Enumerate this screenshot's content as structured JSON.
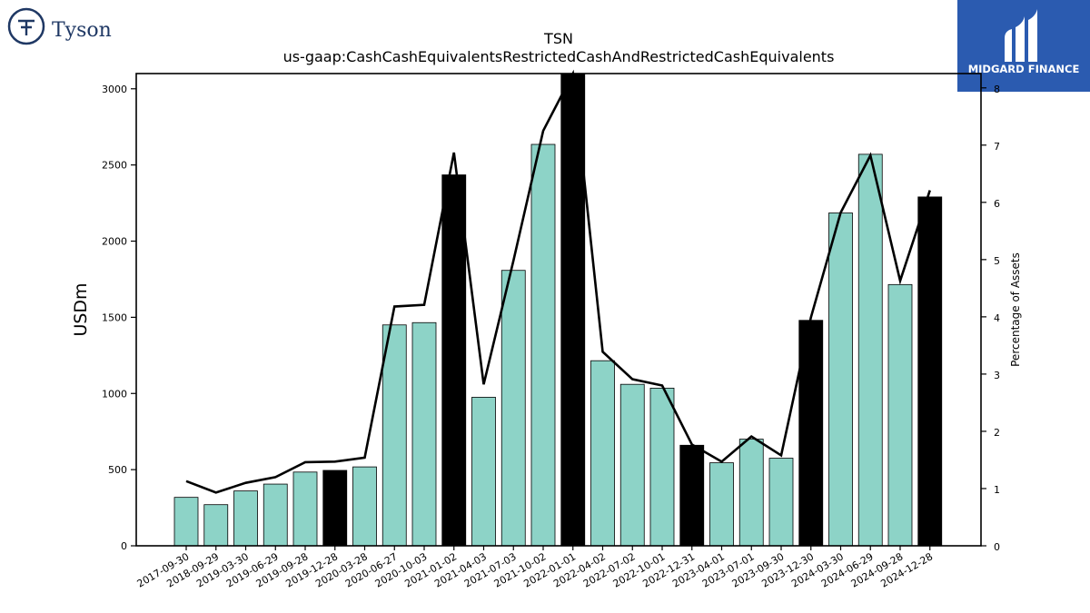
{
  "branding": {
    "left_logo_text": "Tyson",
    "right_logo_text": "MIDGARD FINANCE",
    "left_color": "#1f3864",
    "right_bg": "#2b5bb0"
  },
  "chart_data": {
    "type": "bar",
    "title": "TSN",
    "subtitle": "us-gaap:CashCashEquivalentsRestrictedCashAndRestrictedCashEquivalents",
    "ylabel": "USDm",
    "y2label": "Percentage of Assets",
    "ylim": [
      0,
      3100
    ],
    "y2lim": [
      0,
      8.25
    ],
    "yticks": [
      0,
      500,
      1000,
      1500,
      2000,
      2500,
      3000
    ],
    "y2ticks": [
      0,
      1,
      2,
      3,
      4,
      5,
      6,
      7,
      8
    ],
    "categories": [
      "2017-09-30",
      "2018-09-29",
      "2019-03-30",
      "2019-06-29",
      "2019-09-28",
      "2019-12-28",
      "2020-03-28",
      "2020-06-27",
      "2020-10-03",
      "2021-01-02",
      "2021-04-03",
      "2021-07-03",
      "2021-10-02",
      "2022-01-01",
      "2022-04-02",
      "2022-07-02",
      "2022-10-01",
      "2022-12-31",
      "2023-04-01",
      "2023-07-01",
      "2023-09-30",
      "2023-12-30",
      "2024-03-30",
      "2024-06-29",
      "2024-09-28",
      "2024-12-28"
    ],
    "values": [
      318,
      270,
      360,
      405,
      484,
      495,
      518,
      1450,
      1465,
      2435,
      975,
      1808,
      2635,
      3100,
      1215,
      1060,
      1035,
      660,
      545,
      700,
      575,
      1480,
      2185,
      2570,
      1715,
      2290
    ],
    "highlight": [
      false,
      false,
      false,
      false,
      false,
      true,
      false,
      false,
      false,
      true,
      false,
      false,
      false,
      true,
      false,
      false,
      false,
      true,
      false,
      false,
      false,
      true,
      false,
      false,
      false,
      true
    ],
    "pct_assets": [
      1.13,
      0.93,
      1.1,
      1.2,
      1.46,
      1.47,
      1.54,
      4.18,
      4.21,
      6.87,
      2.82,
      4.98,
      7.25,
      8.3,
      3.39,
      2.91,
      2.8,
      1.77,
      1.47,
      1.91,
      1.58,
      3.99,
      5.82,
      6.82,
      4.63,
      6.21
    ],
    "colors": {
      "bar": "#8dd3c7",
      "highlight_bar": "#000000",
      "line": "#000000"
    },
    "grid": false,
    "legend": "none"
  }
}
